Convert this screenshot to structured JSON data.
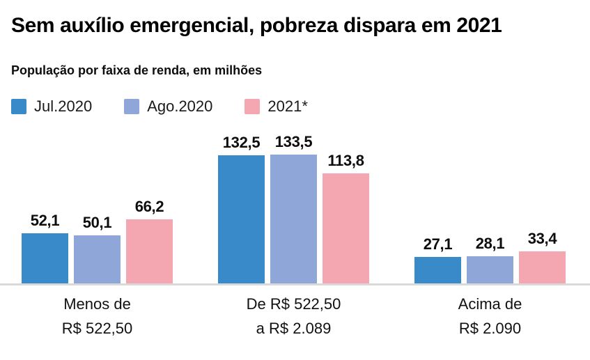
{
  "header": {
    "title": "Sem auxílio emergencial, pobreza dispara em 2021",
    "subtitle": "População por faixa de renda, em milhões"
  },
  "colors": {
    "jul2020": "#398ac8",
    "ago2020": "#8fa7d8",
    "y2021": "#f5a7b1",
    "axis_line": "#d9d9d9",
    "text": "#111111"
  },
  "chart_data": {
    "type": "bar",
    "title": "Sem auxílio emergencial, pobreza dispara em 2021",
    "subtitle": "População por faixa de renda, em milhões",
    "unit": "milhões",
    "categories": [
      [
        "Menos de",
        "R$ 522,50"
      ],
      [
        "De R$ 522,50",
        "a R$ 2.089"
      ],
      [
        "Acima de",
        "R$ 2.090"
      ]
    ],
    "series": [
      {
        "name": "Jul.2020",
        "color": "#398ac8",
        "values": [
          52.1,
          132.5,
          27.1
        ]
      },
      {
        "name": "Ago.2020",
        "color": "#8fa7d8",
        "values": [
          50.1,
          133.5,
          28.1
        ]
      },
      {
        "name": "2021*",
        "color": "#f5a7b1",
        "values": [
          66.2,
          113.8,
          33.4
        ]
      }
    ],
    "value_labels": [
      [
        "52,1",
        "132,5",
        "27,1"
      ],
      [
        "50,1",
        "133,5",
        "28,1"
      ],
      [
        "66,2",
        "113,8",
        "33,4"
      ]
    ],
    "ylim": [
      0,
      140
    ],
    "grid": false,
    "legend_position": "top",
    "decimal_separator": ","
  }
}
